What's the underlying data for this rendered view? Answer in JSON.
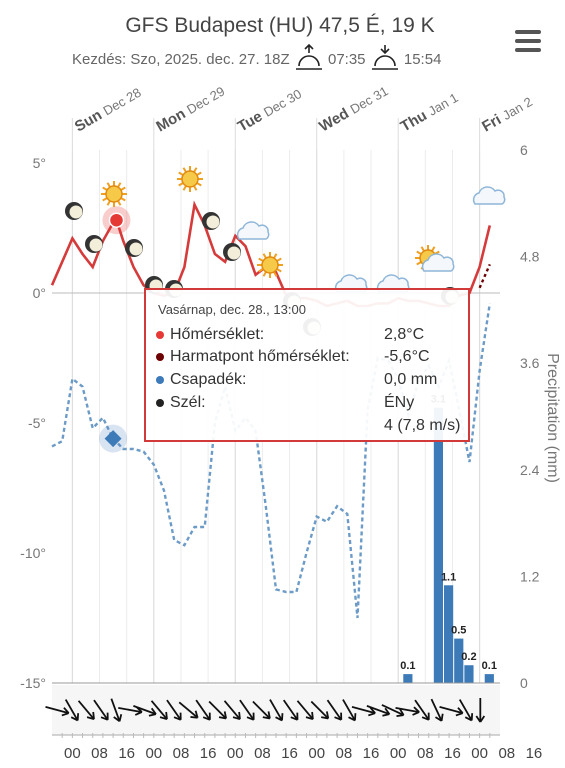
{
  "header": {
    "title": "GFS Budapest (HU) 47,5 É, 19 K",
    "start_label": "Kezdés: Szo, 2025. dec. 27. 18Z",
    "sunrise": "07:35",
    "sunset": "15:54"
  },
  "tooltip": {
    "date": "Vasárnap, dec. 28., 13:00",
    "rows": [
      {
        "label": "Hőmérséklet:",
        "value": "2,8°C",
        "color": "#e53935"
      },
      {
        "label": "Harmatpont hőmérséklet:",
        "value": "-5,6°C",
        "color": "#6d0000"
      },
      {
        "label": "Csapadék:",
        "value": "0,0 mm",
        "color": "#3d7ab8"
      },
      {
        "label": "Szél:",
        "value": "ÉNy",
        "value2": "4 (7,8 m/s)",
        "color": "#222222"
      }
    ]
  },
  "chart_data": {
    "type": "line",
    "day_labels": [
      {
        "day": "Sun",
        "date": "Dec 28"
      },
      {
        "day": "Mon",
        "date": "Dec 29"
      },
      {
        "day": "Tue",
        "date": "Dec 30"
      },
      {
        "day": "Wed",
        "date": "Dec 31"
      },
      {
        "day": "Thu",
        "date": "Jan 1"
      },
      {
        "day": "Fri",
        "date": "Jan 2"
      }
    ],
    "hour_labels": [
      "00",
      "08",
      "16",
      "00",
      "08",
      "16",
      "00",
      "08",
      "16",
      "00",
      "08",
      "16",
      "00",
      "08",
      "16",
      "00",
      "08",
      "16"
    ],
    "x_hours_range": [
      -6,
      126
    ],
    "y_left": {
      "ticks": [
        "5°",
        "0°",
        "-5°",
        "-10°",
        "-15°"
      ],
      "values": [
        5,
        0,
        -5,
        -10,
        -15
      ],
      "range": [
        -15,
        5.5
      ]
    },
    "y_right": {
      "label": "Precipitation (mm)",
      "ticks": [
        "6",
        "4.8",
        "3.6",
        "2.4",
        "1.2",
        "0"
      ],
      "values": [
        6,
        4.8,
        3.6,
        2.4,
        1.2,
        0
      ],
      "range": [
        0,
        6
      ]
    },
    "series": [
      {
        "name": "Hőmérséklet",
        "color": "#d63b3b",
        "x": [
          -6,
          -3,
          0,
          3,
          6,
          9,
          12,
          13,
          15,
          18,
          21,
          24,
          27,
          30,
          33,
          36,
          39,
          42,
          45,
          48,
          51,
          54,
          57,
          60,
          63,
          66,
          69,
          72,
          75,
          78,
          81,
          84,
          87,
          90,
          93,
          96,
          99,
          102,
          105,
          108,
          111,
          114,
          117,
          120,
          123
        ],
        "y": [
          0.3,
          1.2,
          2.1,
          1.5,
          1.0,
          2.0,
          2.7,
          2.8,
          2.0,
          1.0,
          0.3,
          0.0,
          -0.1,
          0.0,
          1.0,
          3.4,
          2.6,
          1.5,
          1.2,
          2.2,
          1.8,
          0.7,
          1.0,
          0.8,
          -0.1,
          -0.2,
          -0.2,
          -0.3,
          -0.5,
          -0.4,
          -0.3,
          -0.5,
          -0.5,
          -0.4,
          -0.4,
          -0.2,
          -0.3,
          -0.3,
          -0.4,
          -0.5,
          -0.5,
          -0.1,
          0.0,
          1.0,
          2.6
        ]
      },
      {
        "name": "Harmatpont hőmérséklet",
        "color": "#6d9bc7",
        "x": [
          -6,
          -3,
          0,
          3,
          6,
          9,
          12,
          15,
          18,
          21,
          24,
          27,
          30,
          33,
          36,
          39,
          42,
          45,
          48,
          51,
          54,
          57,
          60,
          63,
          66,
          69,
          72,
          75,
          78,
          81,
          84,
          87,
          90,
          93,
          96,
          99,
          102,
          105,
          108,
          111,
          114,
          117,
          120,
          123
        ],
        "y": [
          -5.9,
          -5.7,
          -3.3,
          -3.6,
          -5.2,
          -4.8,
          -5.6,
          -6.0,
          -6.0,
          -6.1,
          -6.6,
          -7.6,
          -9.5,
          -9.7,
          -9.0,
          -9.0,
          -5.0,
          -3.6,
          -5.3,
          -4.8,
          -5.3,
          -8.2,
          -11.4,
          -11.5,
          -11.5,
          -10.0,
          -8.6,
          -8.8,
          -8.2,
          -8.5,
          -12.5,
          -4.5,
          -2.5,
          -2.6,
          -3.3,
          -4.7,
          -3.4,
          -2.8,
          -3.6,
          -2.6,
          -4.5,
          -6.5,
          -3.0,
          -0.4
        ]
      }
    ],
    "precip_bars": {
      "x": [
        99,
        105,
        108,
        111,
        114,
        117,
        120,
        123
      ],
      "values": [
        0.1,
        0.0,
        3.1,
        1.1,
        0.5,
        0.2,
        0.0,
        0.1
      ],
      "labels": [
        "0.1",
        "",
        "3.1",
        "1.1",
        "0.5",
        "0.2",
        "",
        "0.1"
      ]
    },
    "wind_arrow_count": 30
  }
}
